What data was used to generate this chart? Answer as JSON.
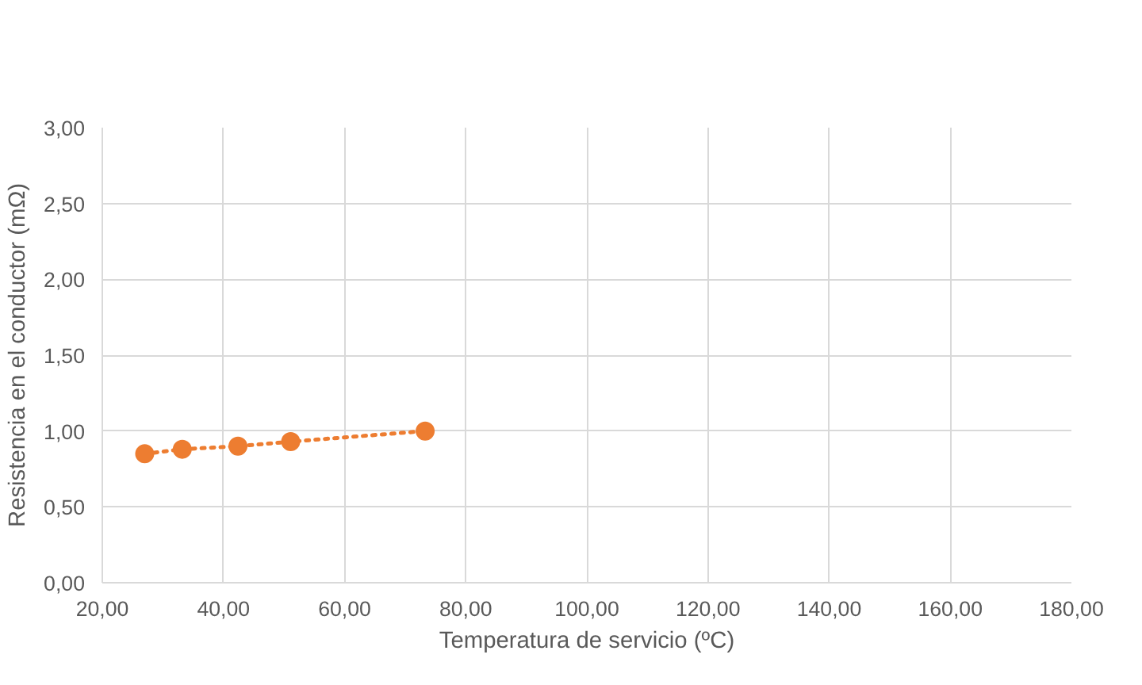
{
  "chart_data": {
    "type": "line",
    "xlabel": "Temperatura de servicio (ºC)",
    "ylabel": "Resistencia en el conductor (mΩ)",
    "x": [
      27.0,
      33.2,
      42.4,
      51.1,
      73.3
    ],
    "series": [
      {
        "color": "#ed7d31",
        "values": [
          0.85,
          0.88,
          0.9,
          0.93,
          1.0
        ]
      }
    ],
    "marker": "circle",
    "line_style": "dotted",
    "grid": true,
    "xlim": [
      20,
      180
    ],
    "xticks": [
      {
        "value": 20,
        "label": "20,00"
      },
      {
        "value": 40,
        "label": "40,00"
      },
      {
        "value": 60,
        "label": "60,00"
      },
      {
        "value": 80,
        "label": "80,00"
      },
      {
        "value": 100,
        "label": "100,00"
      },
      {
        "value": 120,
        "label": "120,00"
      },
      {
        "value": 140,
        "label": "140,00"
      },
      {
        "value": 160,
        "label": "160,00"
      },
      {
        "value": 180,
        "label": "180,00"
      }
    ],
    "ylim": [
      0,
      3
    ],
    "yticks": [
      {
        "value": 0,
        "label": "0,00"
      },
      {
        "value": 0.5,
        "label": "0,50"
      },
      {
        "value": 1,
        "label": "1,00"
      },
      {
        "value": 1.5,
        "label": "1,50"
      },
      {
        "value": 2,
        "label": "2,00"
      },
      {
        "value": 2.5,
        "label": "2,50"
      },
      {
        "value": 3,
        "label": "3,00"
      }
    ]
  }
}
